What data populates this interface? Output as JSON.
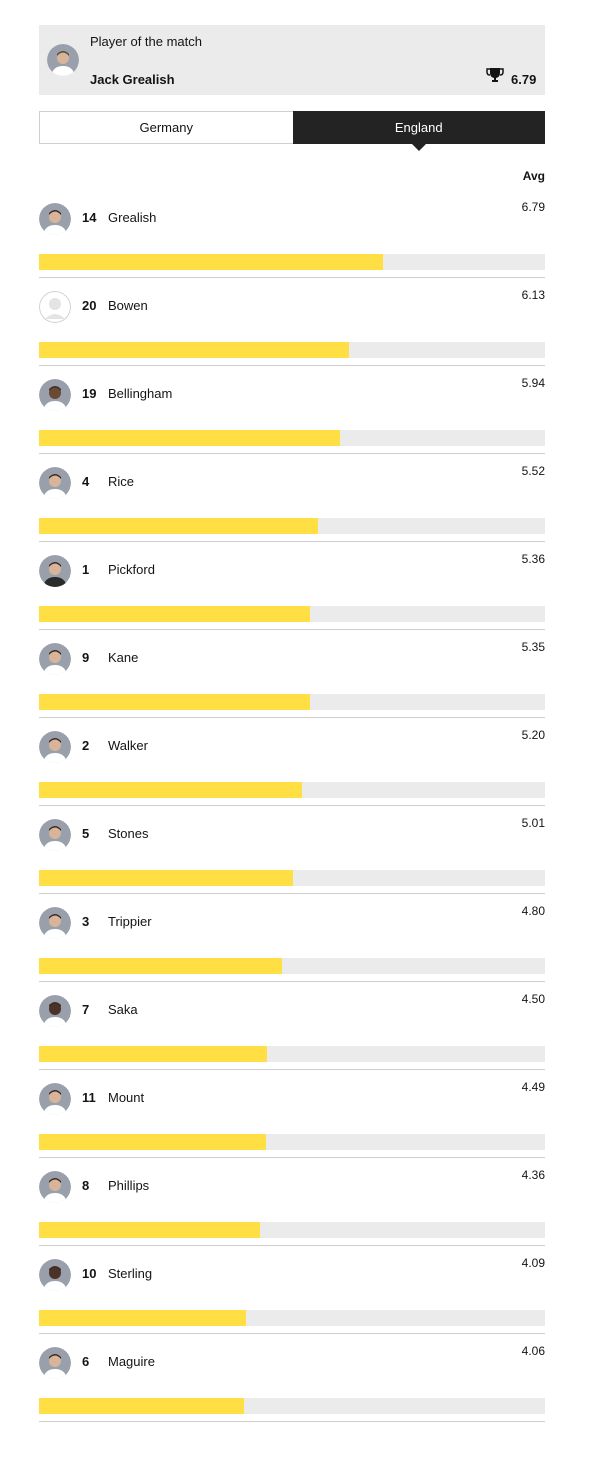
{
  "player_of_match": {
    "caption": "Player of the match",
    "name": "Jack Grealish",
    "score": "6.79",
    "icon": "trophy-icon"
  },
  "tabs": [
    {
      "label": "Germany",
      "active": false
    },
    {
      "label": "England",
      "active": true
    }
  ],
  "avg_header": "Avg",
  "rating_scale_max": 10,
  "colors": {
    "bar_fill": "#ffdf43",
    "bar_track": "#ebebeb",
    "active_tab": "#232323"
  },
  "players": [
    {
      "number": "14",
      "name": "Grealish",
      "rating": "6.79",
      "photo": "player-photo"
    },
    {
      "number": "20",
      "name": "Bowen",
      "rating": "6.13",
      "photo": "placeholder-avatar"
    },
    {
      "number": "19",
      "name": "Bellingham",
      "rating": "5.94",
      "photo": "player-photo"
    },
    {
      "number": "4",
      "name": "Rice",
      "rating": "5.52",
      "photo": "player-photo"
    },
    {
      "number": "1",
      "name": "Pickford",
      "rating": "5.36",
      "photo": "player-photo"
    },
    {
      "number": "9",
      "name": "Kane",
      "rating": "5.35",
      "photo": "player-photo"
    },
    {
      "number": "2",
      "name": "Walker",
      "rating": "5.20",
      "photo": "player-photo"
    },
    {
      "number": "5",
      "name": "Stones",
      "rating": "5.01",
      "photo": "player-photo"
    },
    {
      "number": "3",
      "name": "Trippier",
      "rating": "4.80",
      "photo": "player-photo"
    },
    {
      "number": "7",
      "name": "Saka",
      "rating": "4.50",
      "photo": "player-photo"
    },
    {
      "number": "11",
      "name": "Mount",
      "rating": "4.49",
      "photo": "player-photo"
    },
    {
      "number": "8",
      "name": "Phillips",
      "rating": "4.36",
      "photo": "player-photo"
    },
    {
      "number": "10",
      "name": "Sterling",
      "rating": "4.09",
      "photo": "player-photo"
    },
    {
      "number": "6",
      "name": "Maguire",
      "rating": "4.06",
      "photo": "player-photo"
    }
  ]
}
